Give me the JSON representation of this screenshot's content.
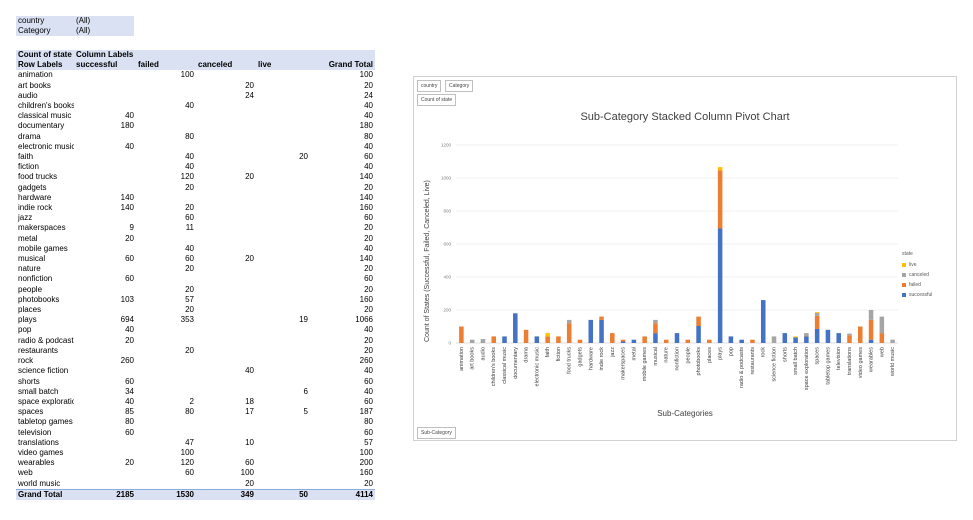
{
  "pivot": {
    "filters": [
      {
        "label": "country",
        "value": "(All)"
      },
      {
        "label": "Category",
        "value": "(All)"
      }
    ],
    "header1": [
      "Count of state",
      "Column Labels"
    ],
    "header2": [
      "Row Labels",
      "successful",
      "failed",
      "canceled",
      "live",
      "Grand Total"
    ],
    "rows": [
      [
        "animation",
        "",
        "100",
        "",
        "",
        "100"
      ],
      [
        "art books",
        "",
        "",
        "20",
        "",
        "20"
      ],
      [
        "audio",
        "",
        "",
        "24",
        "",
        "24"
      ],
      [
        "children's books",
        "",
        "40",
        "",
        "",
        "40"
      ],
      [
        "classical music",
        "40",
        "",
        "",
        "",
        "40"
      ],
      [
        "documentary",
        "180",
        "",
        "",
        "",
        "180"
      ],
      [
        "drama",
        "",
        "80",
        "",
        "",
        "80"
      ],
      [
        "electronic music",
        "40",
        "",
        "",
        "",
        "40"
      ],
      [
        "faith",
        "",
        "40",
        "",
        "20",
        "60"
      ],
      [
        "fiction",
        "",
        "40",
        "",
        "",
        "40"
      ],
      [
        "food trucks",
        "",
        "120",
        "20",
        "",
        "140"
      ],
      [
        "gadgets",
        "",
        "20",
        "",
        "",
        "20"
      ],
      [
        "hardware",
        "140",
        "",
        "",
        "",
        "140"
      ],
      [
        "indie rock",
        "140",
        "20",
        "",
        "",
        "160"
      ],
      [
        "jazz",
        "",
        "60",
        "",
        "",
        "60"
      ],
      [
        "makerspaces",
        "9",
        "11",
        "",
        "",
        "20"
      ],
      [
        "metal",
        "20",
        "",
        "",
        "",
        "20"
      ],
      [
        "mobile games",
        "",
        "40",
        "",
        "",
        "40"
      ],
      [
        "musical",
        "60",
        "60",
        "20",
        "",
        "140"
      ],
      [
        "nature",
        "",
        "20",
        "",
        "",
        "20"
      ],
      [
        "nonfiction",
        "60",
        "",
        "",
        "",
        "60"
      ],
      [
        "people",
        "",
        "20",
        "",
        "",
        "20"
      ],
      [
        "photobooks",
        "103",
        "57",
        "",
        "",
        "160"
      ],
      [
        "places",
        "",
        "20",
        "",
        "",
        "20"
      ],
      [
        "plays",
        "694",
        "353",
        "",
        "19",
        "1066"
      ],
      [
        "pop",
        "40",
        "",
        "",
        "",
        "40"
      ],
      [
        "radio & podcasts",
        "20",
        "",
        "",
        "",
        "20"
      ],
      [
        "restaurants",
        "",
        "20",
        "",
        "",
        "20"
      ],
      [
        "rock",
        "260",
        "",
        "",
        "",
        "260"
      ],
      [
        "science fiction",
        "",
        "",
        "40",
        "",
        "40"
      ],
      [
        "shorts",
        "60",
        "",
        "",
        "",
        "60"
      ],
      [
        "small batch",
        "34",
        "",
        "",
        "6",
        "40"
      ],
      [
        "space exploration",
        "40",
        "2",
        "18",
        "",
        "60"
      ],
      [
        "spaces",
        "85",
        "80",
        "17",
        "5",
        "187"
      ],
      [
        "tabletop games",
        "80",
        "",
        "",
        "",
        "80"
      ],
      [
        "television",
        "60",
        "",
        "",
        "",
        "60"
      ],
      [
        "translations",
        "",
        "47",
        "10",
        "",
        "57"
      ],
      [
        "video games",
        "",
        "100",
        "",
        "",
        "100"
      ],
      [
        "wearables",
        "20",
        "120",
        "60",
        "",
        "200"
      ],
      [
        "web",
        "",
        "60",
        "100",
        "",
        "160"
      ],
      [
        "world music",
        "",
        "",
        "20",
        "",
        "20"
      ]
    ],
    "total": [
      "Grand Total",
      "2185",
      "1530",
      "349",
      "50",
      "4114"
    ]
  },
  "chart": {
    "buttons": {
      "country": "country",
      "category": "Category",
      "count": "Count of state",
      "subcategory": "Sub-Category"
    },
    "legend_title": "state"
  },
  "chart_data": {
    "type": "bar",
    "stacked": true,
    "title": "Sub-Category Stacked Column Pivot Chart",
    "xlabel": "Sub-Categories",
    "ylabel": "Count of States (Successful, Failed, Canceled, Live)",
    "ylim": [
      0,
      1200
    ],
    "yticks": [
      0,
      200,
      400,
      600,
      800,
      1000,
      1200
    ],
    "grid": true,
    "legend_position": "right",
    "categories": [
      "animation",
      "art books",
      "audio",
      "children's books",
      "classical music",
      "documentary",
      "drama",
      "electronic music",
      "faith",
      "fiction",
      "food trucks",
      "gadgets",
      "hardware",
      "indie rock",
      "jazz",
      "makerspaces",
      "metal",
      "mobile games",
      "musical",
      "nature",
      "nonfiction",
      "people",
      "photobooks",
      "places",
      "plays",
      "pop",
      "radio & podcasts",
      "restaurants",
      "rock",
      "science fiction",
      "shorts",
      "small batch",
      "space exploration",
      "spaces",
      "tabletop games",
      "television",
      "translations",
      "video games",
      "wearables",
      "web",
      "world music"
    ],
    "series": [
      {
        "name": "successful",
        "color": "#4472c4",
        "values": [
          0,
          0,
          0,
          0,
          40,
          180,
          0,
          40,
          0,
          0,
          0,
          0,
          140,
          140,
          0,
          9,
          20,
          0,
          60,
          0,
          60,
          0,
          103,
          0,
          694,
          40,
          20,
          0,
          260,
          0,
          60,
          34,
          40,
          85,
          80,
          60,
          0,
          0,
          20,
          0,
          0
        ]
      },
      {
        "name": "failed",
        "color": "#ed7d31",
        "values": [
          100,
          0,
          0,
          40,
          0,
          0,
          80,
          0,
          40,
          40,
          120,
          20,
          0,
          20,
          60,
          11,
          0,
          40,
          60,
          20,
          0,
          20,
          57,
          20,
          353,
          0,
          0,
          20,
          0,
          0,
          0,
          0,
          2,
          80,
          0,
          0,
          47,
          100,
          120,
          60,
          0
        ]
      },
      {
        "name": "canceled",
        "color": "#a5a5a5",
        "values": [
          0,
          20,
          24,
          0,
          0,
          0,
          0,
          0,
          0,
          0,
          20,
          0,
          0,
          0,
          0,
          0,
          0,
          0,
          20,
          0,
          0,
          0,
          0,
          0,
          0,
          0,
          0,
          0,
          0,
          40,
          0,
          0,
          18,
          17,
          0,
          0,
          10,
          0,
          60,
          100,
          20
        ]
      },
      {
        "name": "live",
        "color": "#ffc000",
        "values": [
          0,
          0,
          0,
          0,
          0,
          0,
          0,
          0,
          20,
          0,
          0,
          0,
          0,
          0,
          0,
          0,
          0,
          0,
          0,
          0,
          0,
          0,
          0,
          0,
          19,
          0,
          0,
          0,
          0,
          0,
          0,
          6,
          0,
          5,
          0,
          0,
          0,
          0,
          0,
          0,
          0
        ]
      }
    ]
  }
}
